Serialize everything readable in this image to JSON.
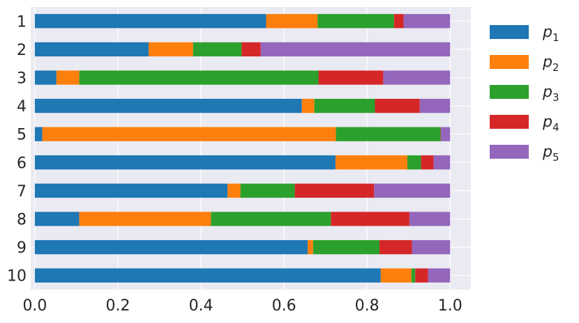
{
  "chart_data": {
    "type": "bar",
    "orientation": "horizontal",
    "stacked": true,
    "categories": [
      "1",
      "2",
      "3",
      "4",
      "5",
      "6",
      "7",
      "8",
      "9",
      "10"
    ],
    "series": [
      {
        "name": "p",
        "subscript": "1",
        "color": "#1f77b4",
        "values": [
          0.557,
          0.274,
          0.052,
          0.643,
          0.018,
          0.724,
          0.464,
          0.107,
          0.657,
          0.833
        ]
      },
      {
        "name": "p",
        "subscript": "2",
        "color": "#ff7f0e",
        "values": [
          0.124,
          0.107,
          0.055,
          0.03,
          0.707,
          0.173,
          0.031,
          0.317,
          0.013,
          0.074
        ]
      },
      {
        "name": "p",
        "subscript": "3",
        "color": "#2ca02c",
        "values": [
          0.184,
          0.117,
          0.576,
          0.146,
          0.252,
          0.033,
          0.131,
          0.289,
          0.16,
          0.009
        ]
      },
      {
        "name": "p",
        "subscript": "4",
        "color": "#d62728",
        "values": [
          0.023,
          0.046,
          0.156,
          0.108,
          0.001,
          0.03,
          0.191,
          0.189,
          0.078,
          0.031
        ]
      },
      {
        "name": "p",
        "subscript": "5",
        "color": "#9467bd",
        "values": [
          0.112,
          0.456,
          0.161,
          0.073,
          0.022,
          0.04,
          0.183,
          0.098,
          0.092,
          0.053
        ]
      }
    ],
    "xlim": [
      -0.01,
      1.05
    ],
    "x_ticks": [
      "0.0",
      "0.2",
      "0.4",
      "0.6",
      "0.8",
      "1.0"
    ],
    "x_tick_values": [
      0.0,
      0.2,
      0.4,
      0.6,
      0.8,
      1.0
    ],
    "grid": true,
    "legend_position": "outside-right",
    "title": "",
    "xlabel": "",
    "ylabel": ""
  }
}
